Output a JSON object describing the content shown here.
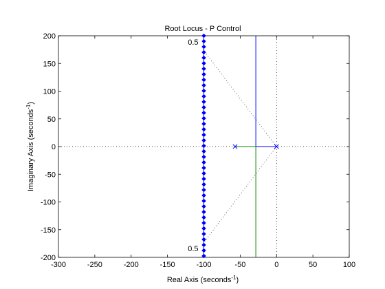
{
  "chart_data": {
    "type": "line",
    "title": "Root Locus - P Control",
    "xlabel_main": "Real Axis (seconds",
    "xlabel_sup": "-1",
    "xlabel_end": ")",
    "ylabel_main": "Imaginary Axis (seconds",
    "ylabel_sup": "-1",
    "ylabel_end": ")",
    "xlim": [
      -300,
      100
    ],
    "ylim": [
      -200,
      200
    ],
    "xticks": [
      -300,
      -250,
      -200,
      -150,
      -100,
      -50,
      0,
      50,
      100
    ],
    "yticks": [
      -200,
      -150,
      -100,
      -50,
      0,
      50,
      100,
      150,
      200
    ],
    "grid": "off",
    "poles": [
      [
        -57,
        0
      ],
      [
        0,
        0
      ]
    ],
    "zero_marker": "x",
    "damping_label": "0.5",
    "damping_lines": [
      {
        "from": [
          0,
          0
        ],
        "to": [
          -100,
          173
        ]
      },
      {
        "from": [
          0,
          0
        ],
        "to": [
          -100,
          -173
        ]
      }
    ],
    "imag_axis_line": {
      "x": 0,
      "ylim": [
        -200,
        200
      ]
    },
    "real_axis_line": {
      "y": 0,
      "xlim": [
        -300,
        100
      ]
    },
    "series": [
      {
        "color": "#0000ff",
        "points": [
          [
            0,
            0
          ],
          [
            -28.5,
            0
          ],
          [
            -28.5,
            200
          ]
        ]
      },
      {
        "color": "#008000",
        "points": [
          [
            -57,
            0
          ],
          [
            -28.5,
            0
          ],
          [
            -28.5,
            -200
          ]
        ]
      }
    ],
    "requirement_line": {
      "x": -100,
      "ylim": [
        -200,
        200
      ],
      "color": "#0000ff",
      "marker": "diamond",
      "spacing": 8
    }
  }
}
